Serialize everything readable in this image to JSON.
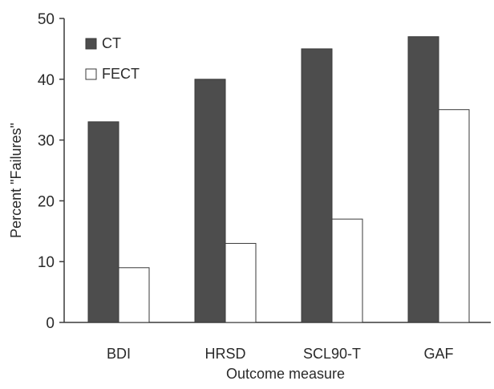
{
  "chart_data": {
    "type": "bar",
    "categories": [
      "BDI",
      "HRSD",
      "SCL90-T",
      "GAF"
    ],
    "series": [
      {
        "name": "CT",
        "values": [
          33,
          40,
          45,
          47
        ]
      },
      {
        "name": "FECT",
        "values": [
          9,
          13,
          17,
          35
        ]
      }
    ],
    "title": "",
    "xlabel": "Outcome measure",
    "ylabel": "Percent \"Failures\"",
    "ylim": [
      0,
      50
    ],
    "yticks": [
      0,
      10,
      20,
      30,
      40,
      50
    ],
    "grid": false,
    "legend_position": "top-left"
  },
  "colors": {
    "CT": "#4d4d4d",
    "FECT": "#ffffff",
    "axis": "#3a3a3a"
  }
}
